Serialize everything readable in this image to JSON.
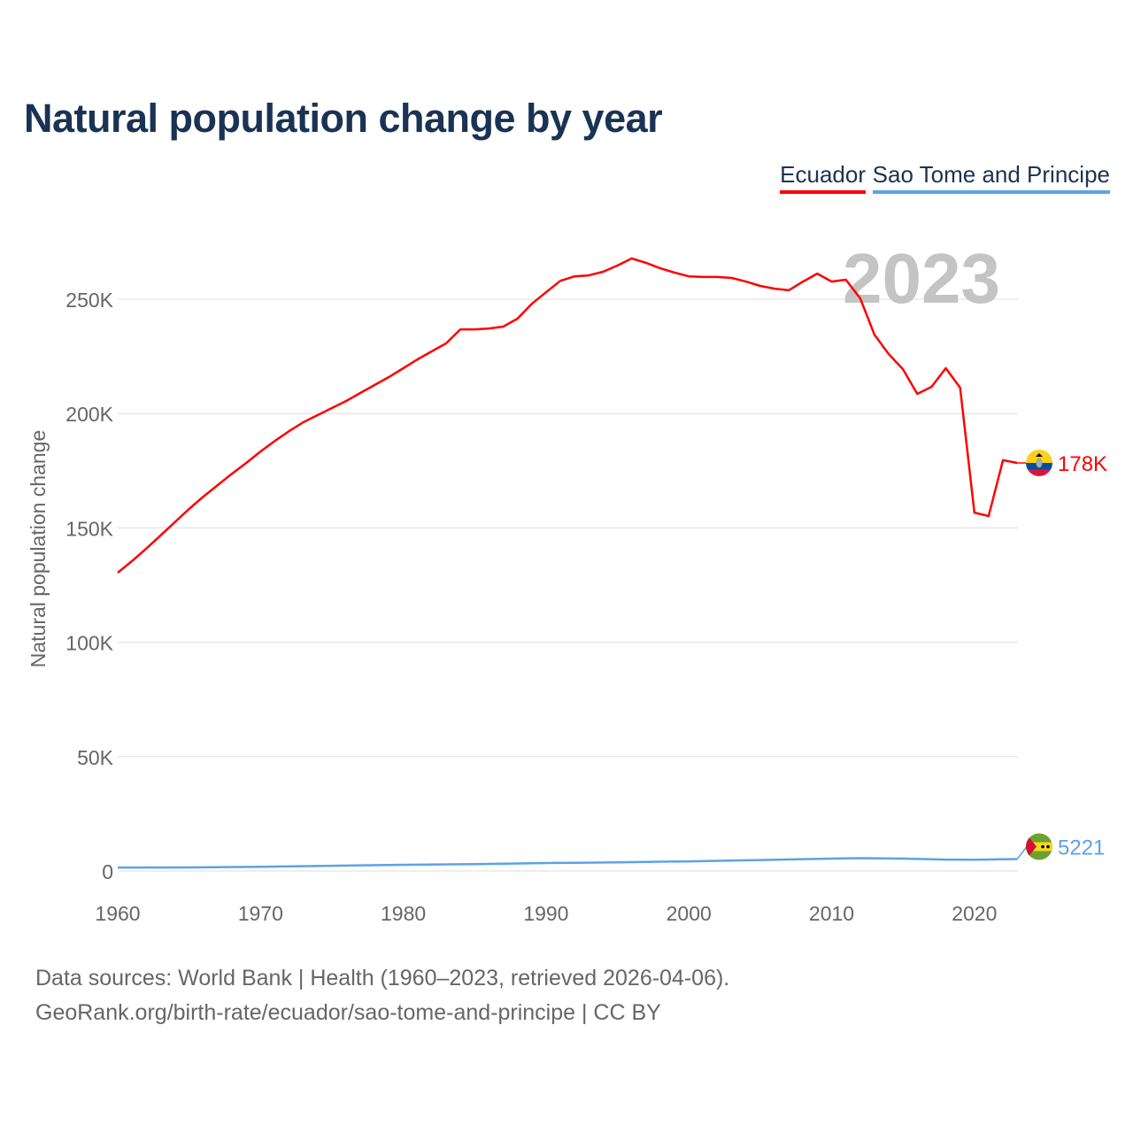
{
  "chart_data": {
    "type": "line",
    "title": "Natural population change by year",
    "ylabel": "Natural population change",
    "xlabel": "",
    "xlim": [
      1960,
      2023
    ],
    "ylim": [
      0,
      270000
    ],
    "x_ticks": [
      1960,
      1970,
      1980,
      1990,
      2000,
      2010,
      2020
    ],
    "x_tick_labels": [
      "1960",
      "1970",
      "1980",
      "1990",
      "2000",
      "2010",
      "2020"
    ],
    "y_ticks": [
      0,
      50000,
      100000,
      150000,
      200000,
      250000
    ],
    "y_tick_labels": [
      "0",
      "50K",
      "100K",
      "150K",
      "200K",
      "250K"
    ],
    "grid": true,
    "legend_position": "top-right",
    "year_watermark": "2023",
    "series": [
      {
        "name": "Ecuador",
        "color": "#ff0000",
        "end_label": "178K",
        "flag": "ecuador-flag",
        "x": [
          1960,
          1961,
          1962,
          1963,
          1964,
          1965,
          1966,
          1967,
          1968,
          1969,
          1970,
          1971,
          1972,
          1973,
          1974,
          1975,
          1976,
          1977,
          1978,
          1979,
          1980,
          1981,
          1982,
          1983,
          1984,
          1985,
          1986,
          1987,
          1988,
          1989,
          1990,
          1991,
          1992,
          1993,
          1994,
          1995,
          1996,
          1997,
          1998,
          1999,
          2000,
          2001,
          2002,
          2003,
          2004,
          2005,
          2006,
          2007,
          2008,
          2009,
          2010,
          2011,
          2012,
          2013,
          2014,
          2015,
          2016,
          2017,
          2018,
          2019,
          2020,
          2021,
          2022,
          2023
        ],
        "values": [
          130400,
          135500,
          141000,
          146700,
          152500,
          158300,
          163700,
          168700,
          173700,
          178400,
          183400,
          188000,
          192300,
          196200,
          199300,
          202400,
          205500,
          209000,
          212500,
          216000,
          219800,
          223700,
          227200,
          230700,
          236800,
          236800,
          237200,
          238000,
          241500,
          248000,
          253000,
          258000,
          260000,
          260400,
          262000,
          264700,
          267800,
          265900,
          263500,
          261600,
          260000,
          259700,
          259700,
          259300,
          257700,
          255800,
          254600,
          253900,
          257700,
          261200,
          257700,
          258500,
          250400,
          234500,
          226000,
          219400,
          208600,
          211700,
          219800,
          211300,
          156700,
          155200,
          179600,
          178400
        ]
      },
      {
        "name": "Sao Tome and Principe",
        "color": "#5ba3e6",
        "end_label": "5221",
        "flag": "sao-tome-flag",
        "x": [
          1960,
          1965,
          1970,
          1975,
          1980,
          1985,
          1990,
          1995,
          2000,
          2005,
          2010,
          2012,
          2015,
          2018,
          2020,
          2022,
          2023
        ],
        "values": [
          1500,
          1550,
          1800,
          2300,
          2700,
          3000,
          3500,
          3800,
          4200,
          4800,
          5400,
          5600,
          5400,
          5000,
          4900,
          5100,
          5221
        ]
      }
    ]
  },
  "footer": {
    "line1": "Data sources: World Bank | Health (1960–2023, retrieved 2026-04-06).",
    "line2": "GeoRank.org/birth-rate/ecuador/sao-tome-and-principe | CC BY"
  }
}
